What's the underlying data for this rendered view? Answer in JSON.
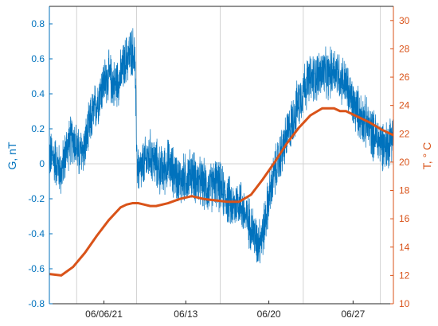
{
  "chart_data": {
    "type": "line",
    "title": "",
    "xlabel": "",
    "ylabel_left": "G, nT",
    "ylabel_right": "T, ° C",
    "xlim": [
      "06/02/06",
      "06/30/05"
    ],
    "ylim_left": [
      -0.8,
      0.9
    ],
    "ylim_right": [
      10,
      31
    ],
    "x_ticks": [
      {
        "label": "06/06/21",
        "x": 4.6
      },
      {
        "label": "06/13",
        "x": 11.5
      },
      {
        "label": "06/20",
        "x": 18.5
      },
      {
        "label": "06/27",
        "x": 25.6
      }
    ],
    "x_gridlines": [
      2.3,
      7.35,
      14.4,
      21.4,
      27.9
    ],
    "yticks_left": [
      -0.8,
      -0.6,
      -0.4,
      -0.2,
      0,
      0.2,
      0.4,
      0.6,
      0.8
    ],
    "yticks_right": [
      10,
      12,
      14,
      16,
      18,
      20,
      22,
      24,
      26,
      28,
      30
    ],
    "zero_line": 0,
    "colors": {
      "G": "#0072BD",
      "T": "#D95319",
      "grid": "#D3D3D3",
      "axis": "#262626"
    },
    "series": [
      {
        "name": "G, nT",
        "axis": "left",
        "x": [
          0,
          0.5,
          1,
          1.5,
          2,
          2.5,
          3,
          3.5,
          4,
          4.5,
          5,
          5.5,
          6,
          6.5,
          7,
          7.2,
          7.4,
          7.6,
          8,
          8.5,
          9,
          9.5,
          10,
          10.5,
          11,
          11.5,
          12,
          12.5,
          13,
          13.5,
          14,
          14.5,
          15,
          15.5,
          16,
          16.5,
          17,
          17.5,
          18,
          18.5,
          19,
          19.5,
          20,
          20.5,
          21,
          21.5,
          22,
          22.5,
          23,
          23.5,
          24,
          24.5,
          25,
          25.5,
          26,
          26.5,
          27,
          27.5,
          28,
          28.5,
          29
        ],
        "values": [
          0.05,
          0.02,
          -0.05,
          0.1,
          0.15,
          0.05,
          0.1,
          0.25,
          0.35,
          0.45,
          0.5,
          0.45,
          0.5,
          0.6,
          0.65,
          0.6,
          0.0,
          -0.05,
          0.0,
          0.05,
          0.0,
          -0.05,
          0.0,
          -0.05,
          -0.1,
          -0.08,
          -0.05,
          -0.1,
          -0.12,
          -0.15,
          -0.1,
          -0.15,
          -0.2,
          -0.25,
          -0.2,
          -0.3,
          -0.35,
          -0.45,
          -0.4,
          -0.2,
          -0.05,
          0.05,
          0.15,
          0.25,
          0.35,
          0.45,
          0.48,
          0.5,
          0.52,
          0.5,
          0.55,
          0.5,
          0.45,
          0.35,
          0.3,
          0.25,
          0.2,
          0.15,
          0.12,
          0.1,
          0.2
        ],
        "noise_amplitude": 0.12
      },
      {
        "name": "T, ° C",
        "axis": "right",
        "x": [
          0,
          1,
          2,
          3,
          4,
          5,
          6,
          6.5,
          7,
          7.5,
          8,
          8.5,
          9,
          10,
          11,
          12,
          13,
          14,
          15,
          16,
          17,
          18,
          19,
          20,
          21,
          22,
          23,
          24,
          24.5,
          25,
          26,
          27,
          28,
          29
        ],
        "values": [
          12.1,
          12.0,
          12.6,
          13.6,
          14.8,
          15.9,
          16.8,
          17.0,
          17.1,
          17.1,
          17.0,
          16.9,
          16.9,
          17.1,
          17.4,
          17.6,
          17.4,
          17.3,
          17.2,
          17.2,
          17.7,
          18.8,
          20.0,
          21.3,
          22.4,
          23.3,
          23.8,
          23.8,
          23.6,
          23.6,
          23.2,
          22.8,
          22.3,
          21.9
        ]
      }
    ]
  }
}
